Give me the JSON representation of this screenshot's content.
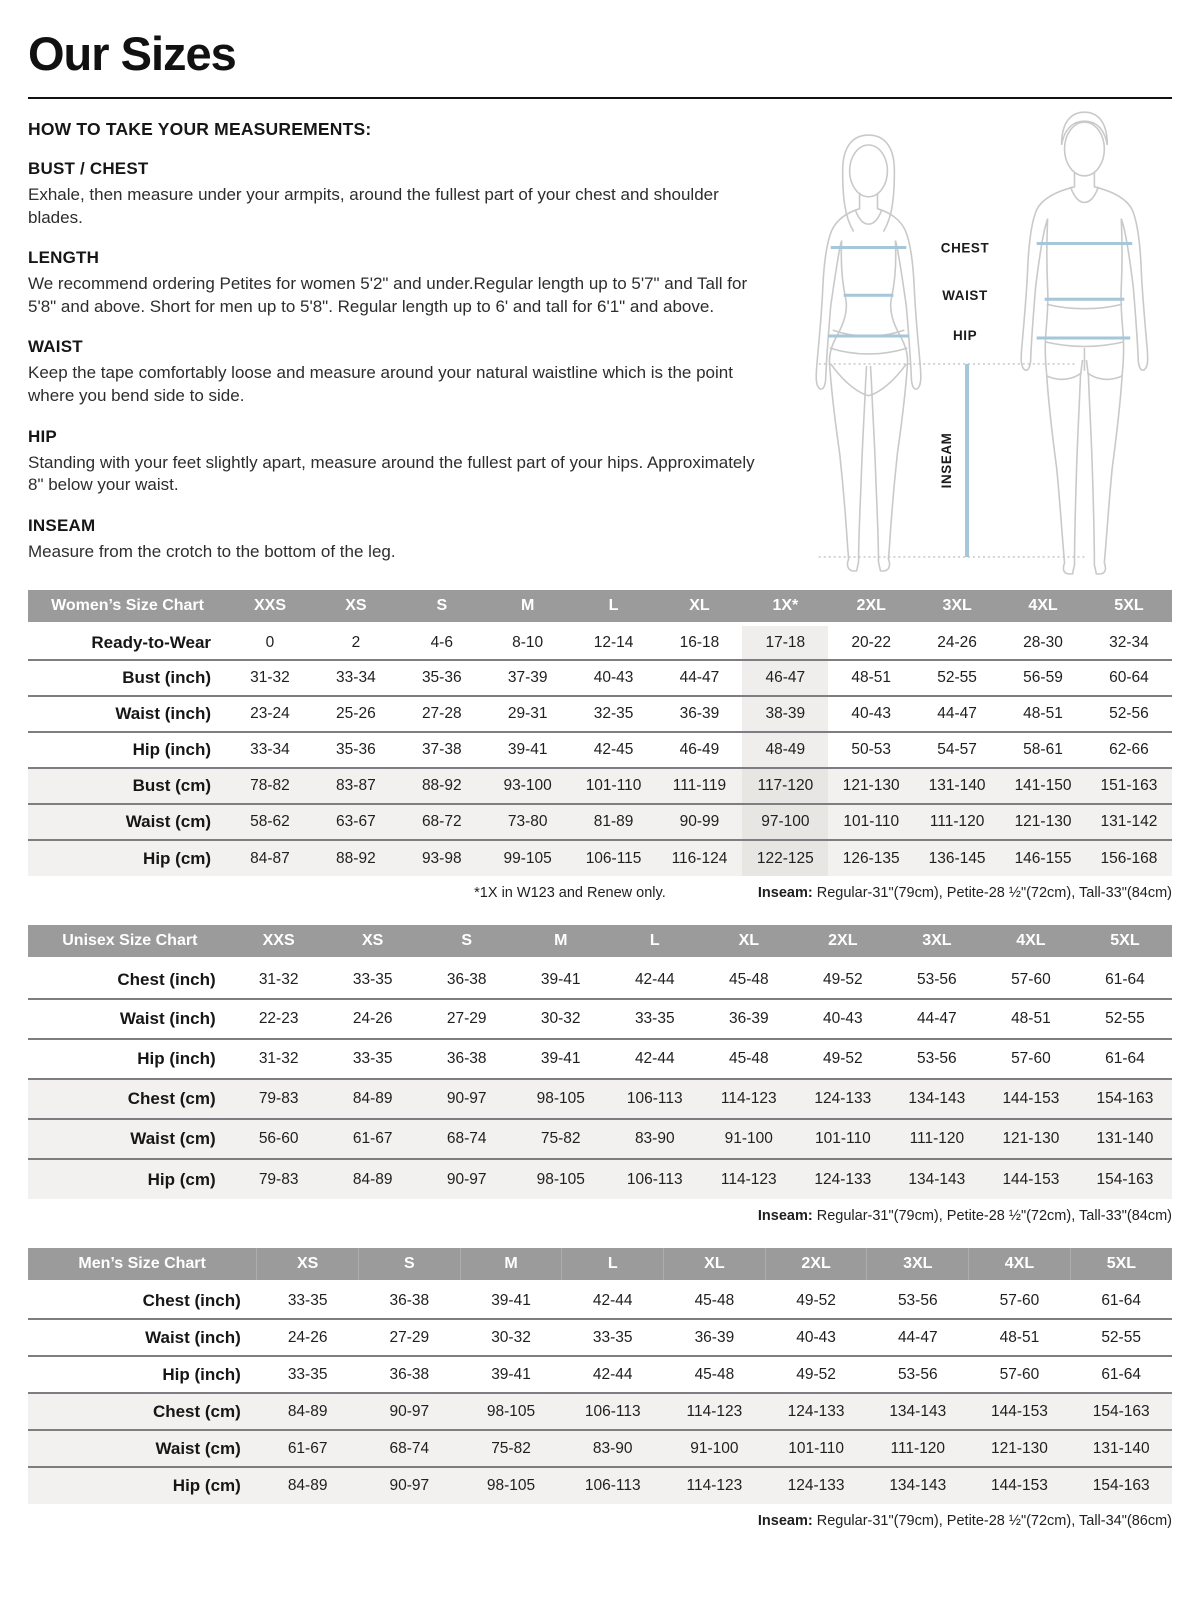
{
  "page": {
    "title": "Our Sizes"
  },
  "instructions": {
    "heading": "HOW TO TAKE YOUR MEASUREMENTS:",
    "sections": [
      {
        "heading": "BUST / CHEST",
        "body": "Exhale, then measure under your armpits, around the fullest part of your chest and shoulder blades."
      },
      {
        "heading": "LENGTH",
        "body": "We recommend ordering Petites for women 5'2\" and under.Regular length up to 5'7\" and Tall for 5'8\" and above. Short for men up to 5'8\". Regular length up to 6' and tall for 6'1\" and above."
      },
      {
        "heading": "WAIST",
        "body": "Keep the tape comfortably loose and measure around your natural waistline which is the point where you bend side to side."
      },
      {
        "heading": "HIP",
        "body": "Standing with your feet slightly apart, measure around the fullest part of your hips. Approximately 8\" below your waist."
      },
      {
        "heading": "INSEAM",
        "body": "Measure from the crotch to the bottom of the leg."
      }
    ]
  },
  "diagram": {
    "labels": {
      "chest": "CHEST",
      "waist": "WAIST",
      "hip": "HIP",
      "inseam": "INSEAM"
    },
    "measure_line_color": "#a6c6d9",
    "outline_color": "#c9c9c9"
  },
  "colors": {
    "table_header_bg": "#9b9b9b",
    "shaded_row_bg": "#f2f1ef",
    "highlight_col_bg": "#efeeec",
    "row_divider": "#7d7e81"
  },
  "tables": [
    {
      "title": "Women’s Size Chart",
      "columns": [
        "XXS",
        "XS",
        "S",
        "M",
        "L",
        "XL",
        "1X*",
        "2XL",
        "3XL",
        "4XL",
        "5XL"
      ],
      "highlight_column": "1X*",
      "rows": [
        {
          "label": "Ready-to-Wear",
          "shaded": false,
          "values": [
            "0",
            "2",
            "4-6",
            "8-10",
            "12-14",
            "16-18",
            "17-18",
            "20-22",
            "24-26",
            "28-30",
            "32-34"
          ]
        },
        {
          "label": "Bust (inch)",
          "shaded": false,
          "values": [
            "31-32",
            "33-34",
            "35-36",
            "37-39",
            "40-43",
            "44-47",
            "46-47",
            "48-51",
            "52-55",
            "56-59",
            "60-64"
          ]
        },
        {
          "label": "Waist (inch)",
          "shaded": false,
          "values": [
            "23-24",
            "25-26",
            "27-28",
            "29-31",
            "32-35",
            "36-39",
            "38-39",
            "40-43",
            "44-47",
            "48-51",
            "52-56"
          ]
        },
        {
          "label": "Hip (inch)",
          "shaded": false,
          "values": [
            "33-34",
            "35-36",
            "37-38",
            "39-41",
            "42-45",
            "46-49",
            "48-49",
            "50-53",
            "54-57",
            "58-61",
            "62-66"
          ]
        },
        {
          "label": "Bust (cm)",
          "shaded": true,
          "values": [
            "78-82",
            "83-87",
            "88-92",
            "93-100",
            "101-110",
            "111-119",
            "117-120",
            "121-130",
            "131-140",
            "141-150",
            "151-163"
          ]
        },
        {
          "label": "Waist (cm)",
          "shaded": true,
          "values": [
            "58-62",
            "63-67",
            "68-72",
            "73-80",
            "81-89",
            "90-99",
            "97-100",
            "101-110",
            "111-120",
            "121-130",
            "131-142"
          ]
        },
        {
          "label": "Hip (cm)",
          "shaded": true,
          "values": [
            "84-87",
            "88-92",
            "93-98",
            "99-105",
            "106-115",
            "116-124",
            "122-125",
            "126-135",
            "136-145",
            "146-155",
            "156-168"
          ]
        }
      ],
      "footnote_left": "*1X in W123 and Renew only.",
      "footnote_inseam_label": "Inseam:",
      "footnote_inseam_text": " Regular-31\"(79cm), Petite-28 ½\"(72cm), Tall-33\"(84cm)"
    },
    {
      "title": "Unisex Size Chart",
      "columns": [
        "XXS",
        "XS",
        "S",
        "M",
        "L",
        "XL",
        "2XL",
        "3XL",
        "4XL",
        "5XL"
      ],
      "highlight_column": "",
      "rows": [
        {
          "label": "Chest (inch)",
          "shaded": false,
          "values": [
            "31-32",
            "33-35",
            "36-38",
            "39-41",
            "42-44",
            "45-48",
            "49-52",
            "53-56",
            "57-60",
            "61-64"
          ]
        },
        {
          "label": "Waist (inch)",
          "shaded": false,
          "values": [
            "22-23",
            "24-26",
            "27-29",
            "30-32",
            "33-35",
            "36-39",
            "40-43",
            "44-47",
            "48-51",
            "52-55"
          ]
        },
        {
          "label": "Hip (inch)",
          "shaded": false,
          "values": [
            "31-32",
            "33-35",
            "36-38",
            "39-41",
            "42-44",
            "45-48",
            "49-52",
            "53-56",
            "57-60",
            "61-64"
          ]
        },
        {
          "label": "Chest (cm)",
          "shaded": true,
          "values": [
            "79-83",
            "84-89",
            "90-97",
            "98-105",
            "106-113",
            "114-123",
            "124-133",
            "134-143",
            "144-153",
            "154-163"
          ]
        },
        {
          "label": "Waist (cm)",
          "shaded": true,
          "values": [
            "56-60",
            "61-67",
            "68-74",
            "75-82",
            "83-90",
            "91-100",
            "101-110",
            "111-120",
            "121-130",
            "131-140"
          ]
        },
        {
          "label": "Hip (cm)",
          "shaded": true,
          "values": [
            "79-83",
            "84-89",
            "90-97",
            "98-105",
            "106-113",
            "114-123",
            "124-133",
            "134-143",
            "144-153",
            "154-163"
          ]
        }
      ],
      "footnote_left": "",
      "footnote_inseam_label": "Inseam:",
      "footnote_inseam_text": " Regular-31\"(79cm), Petite-28 ½\"(72cm), Tall-33\"(84cm)"
    },
    {
      "title": "Men’s Size Chart",
      "columns": [
        "XS",
        "S",
        "M",
        "L",
        "XL",
        "2XL",
        "3XL",
        "4XL",
        "5XL"
      ],
      "highlight_column": "",
      "rows": [
        {
          "label": "Chest (inch)",
          "shaded": false,
          "values": [
            "33-35",
            "36-38",
            "39-41",
            "42-44",
            "45-48",
            "49-52",
            "53-56",
            "57-60",
            "61-64"
          ]
        },
        {
          "label": "Waist (inch)",
          "shaded": false,
          "values": [
            "24-26",
            "27-29",
            "30-32",
            "33-35",
            "36-39",
            "40-43",
            "44-47",
            "48-51",
            "52-55"
          ]
        },
        {
          "label": "Hip (inch)",
          "shaded": false,
          "values": [
            "33-35",
            "36-38",
            "39-41",
            "42-44",
            "45-48",
            "49-52",
            "53-56",
            "57-60",
            "61-64"
          ]
        },
        {
          "label": "Chest (cm)",
          "shaded": true,
          "values": [
            "84-89",
            "90-97",
            "98-105",
            "106-113",
            "114-123",
            "124-133",
            "134-143",
            "144-153",
            "154-163"
          ]
        },
        {
          "label": "Waist (cm)",
          "shaded": true,
          "values": [
            "61-67",
            "68-74",
            "75-82",
            "83-90",
            "91-100",
            "101-110",
            "111-120",
            "121-130",
            "131-140"
          ]
        },
        {
          "label": "Hip (cm)",
          "shaded": true,
          "values": [
            "84-89",
            "90-97",
            "98-105",
            "106-113",
            "114-123",
            "124-133",
            "134-143",
            "144-153",
            "154-163"
          ]
        }
      ],
      "footnote_left": "",
      "footnote_inseam_label": "Inseam:",
      "footnote_inseam_text": " Regular-31\"(79cm), Petite-28 ½\"(72cm), Tall-34\"(86cm)"
    }
  ]
}
